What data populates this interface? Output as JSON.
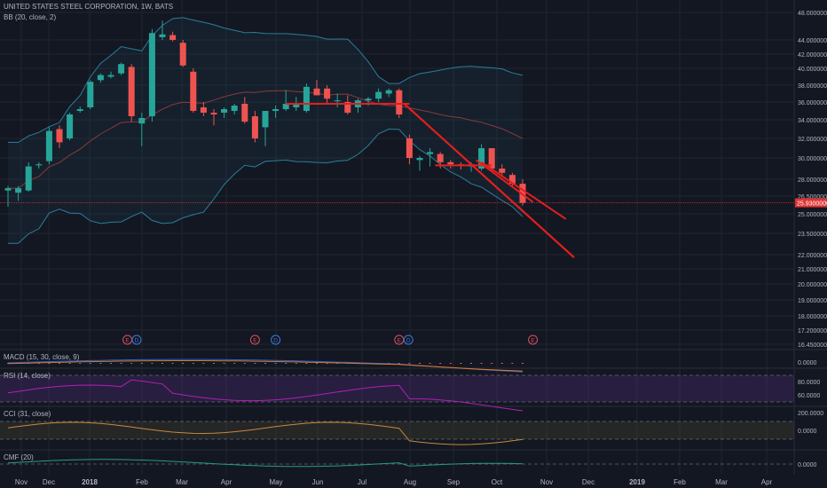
{
  "header": {
    "title": "UNITED STATES STEEL CORPORATION, 1W, BATS",
    "bb_label": "BB (20, close, 2)"
  },
  "colors": {
    "background": "#131722",
    "grid": "#1f2430",
    "up": "#26a69a",
    "down": "#ef5350",
    "trendline": "#e41e1e",
    "bb_basis": "#8a3a3a",
    "bb_band": "#2c7d99",
    "bb_fill": "rgba(38,120,140,0.10)",
    "rsi": "#b21fb7",
    "rsi_fill": "rgba(120,60,170,0.22)",
    "cci": "#c9893d",
    "macd": "#2f62e0",
    "signal": "#e0781f",
    "cmf": "#2b9a82",
    "price_marker": "#e03434"
  },
  "chart_data": {
    "type": "candlestick",
    "symbol": "UNITED STATES STEEL CORPORATION",
    "interval": "1W",
    "source": "BATS",
    "x_labels": [
      "Nov",
      "Dec",
      "2018",
      "Feb",
      "Mar",
      "Apr",
      "May",
      "Jun",
      "Jul",
      "Aug",
      "Sep",
      "Oct",
      "Nov",
      "Dec",
      "2019",
      "Feb",
      "Mar",
      "Apr"
    ],
    "price_axis": [
      "48.0000000",
      "44.0000000",
      "42.0000000",
      "40.0000000",
      "38.0000000",
      "36.0000000",
      "34.0000000",
      "32.0000000",
      "30.0000000",
      "28.0000000",
      "26.5000000",
      "25.0000000",
      "23.5000000",
      "22.0000000",
      "21.0000000",
      "20.0000000",
      "19.0000000",
      "18.0000000",
      "17.2000000",
      "16.4500000"
    ],
    "price_axis_values": [
      48,
      44,
      42,
      40,
      38,
      36,
      34,
      32,
      30,
      28,
      26.5,
      25,
      23.5,
      22,
      21,
      20,
      19,
      18,
      17.2,
      16.45
    ],
    "current_price_label": "25.9300000",
    "current_price": 25.93,
    "candles": [
      {
        "o": 27.0,
        "h": 27.4,
        "l": 25.6,
        "c": 27.2
      },
      {
        "o": 26.8,
        "h": 27.4,
        "l": 26.1,
        "c": 27.2
      },
      {
        "o": 27.0,
        "h": 29.6,
        "l": 26.9,
        "c": 29.2
      },
      {
        "o": 29.3,
        "h": 29.6,
        "l": 29.0,
        "c": 29.4
      },
      {
        "o": 29.7,
        "h": 33.2,
        "l": 29.4,
        "c": 32.8
      },
      {
        "o": 33.0,
        "h": 33.4,
        "l": 31.0,
        "c": 31.6
      },
      {
        "o": 32.0,
        "h": 34.8,
        "l": 31.8,
        "c": 34.6
      },
      {
        "o": 35.0,
        "h": 35.5,
        "l": 34.8,
        "c": 35.2
      },
      {
        "o": 35.4,
        "h": 38.6,
        "l": 35.2,
        "c": 38.4
      },
      {
        "o": 38.6,
        "h": 39.4,
        "l": 38.3,
        "c": 39.2
      },
      {
        "o": 39.0,
        "h": 39.6,
        "l": 38.8,
        "c": 39.2
      },
      {
        "o": 39.4,
        "h": 40.8,
        "l": 39.2,
        "c": 40.6
      },
      {
        "o": 40.2,
        "h": 40.6,
        "l": 33.8,
        "c": 34.4
      },
      {
        "o": 33.6,
        "h": 34.8,
        "l": 31.2,
        "c": 34.2
      },
      {
        "o": 34.4,
        "h": 45.6,
        "l": 33.8,
        "c": 45.0
      },
      {
        "o": 44.4,
        "h": 46.8,
        "l": 44.0,
        "c": 44.8
      },
      {
        "o": 44.7,
        "h": 45.2,
        "l": 43.8,
        "c": 44.0
      },
      {
        "o": 43.6,
        "h": 44.0,
        "l": 40.2,
        "c": 40.4
      },
      {
        "o": 39.6,
        "h": 40.0,
        "l": 34.8,
        "c": 35.0
      },
      {
        "o": 35.4,
        "h": 36.0,
        "l": 34.4,
        "c": 34.8
      },
      {
        "o": 34.8,
        "h": 35.2,
        "l": 33.4,
        "c": 34.6
      },
      {
        "o": 34.8,
        "h": 35.4,
        "l": 34.2,
        "c": 35.2
      },
      {
        "o": 35.0,
        "h": 35.8,
        "l": 34.6,
        "c": 35.6
      },
      {
        "o": 35.8,
        "h": 36.6,
        "l": 33.6,
        "c": 33.8
      },
      {
        "o": 34.4,
        "h": 35.0,
        "l": 31.6,
        "c": 32.0
      },
      {
        "o": 33.2,
        "h": 35.0,
        "l": 31.2,
        "c": 35.0
      },
      {
        "o": 35.0,
        "h": 35.6,
        "l": 34.2,
        "c": 35.2
      },
      {
        "o": 35.2,
        "h": 37.4,
        "l": 35.0,
        "c": 35.8
      },
      {
        "o": 35.4,
        "h": 36.6,
        "l": 35.0,
        "c": 35.8
      },
      {
        "o": 35.0,
        "h": 38.2,
        "l": 34.8,
        "c": 37.8
      },
      {
        "o": 37.6,
        "h": 38.6,
        "l": 36.8,
        "c": 36.8
      },
      {
        "o": 37.6,
        "h": 38.0,
        "l": 35.8,
        "c": 36.4
      },
      {
        "o": 36.2,
        "h": 37.0,
        "l": 35.4,
        "c": 36.2
      },
      {
        "o": 36.0,
        "h": 36.8,
        "l": 34.6,
        "c": 34.8
      },
      {
        "o": 35.4,
        "h": 36.4,
        "l": 34.8,
        "c": 36.2
      },
      {
        "o": 36.2,
        "h": 36.6,
        "l": 35.6,
        "c": 36.4
      },
      {
        "o": 36.4,
        "h": 37.6,
        "l": 36.0,
        "c": 37.2
      },
      {
        "o": 37.0,
        "h": 37.6,
        "l": 36.6,
        "c": 37.4
      },
      {
        "o": 37.4,
        "h": 37.6,
        "l": 34.2,
        "c": 34.6
      },
      {
        "o": 32.0,
        "h": 32.4,
        "l": 29.4,
        "c": 30.0
      },
      {
        "o": 29.8,
        "h": 30.2,
        "l": 28.8,
        "c": 30.0
      },
      {
        "o": 30.4,
        "h": 31.0,
        "l": 29.2,
        "c": 30.6
      },
      {
        "o": 30.4,
        "h": 30.6,
        "l": 29.0,
        "c": 29.6
      },
      {
        "o": 29.6,
        "h": 29.8,
        "l": 29.0,
        "c": 29.4
      },
      {
        "o": 29.4,
        "h": 29.6,
        "l": 28.9,
        "c": 29.3
      },
      {
        "o": 29.2,
        "h": 29.6,
        "l": 28.7,
        "c": 29.4
      },
      {
        "o": 29.0,
        "h": 31.4,
        "l": 28.8,
        "c": 31.0
      },
      {
        "o": 31.0,
        "h": 31.0,
        "l": 28.8,
        "c": 29.0
      },
      {
        "o": 29.0,
        "h": 29.4,
        "l": 28.2,
        "c": 28.6
      },
      {
        "o": 28.4,
        "h": 28.6,
        "l": 27.4,
        "c": 27.6
      },
      {
        "o": 27.6,
        "h": 28.0,
        "l": 25.7,
        "c": 25.93
      }
    ],
    "bollinger": {
      "period": 20,
      "source": "close",
      "mult": 2
    },
    "trendlines_price": [
      {
        "from_bar": 27,
        "from_price": 35.8,
        "to_bar": 39,
        "to_price": 35.8
      },
      {
        "from_bar": 38.5,
        "from_price": 35.8,
        "to_bar": 55,
        "to_price": 21.8
      },
      {
        "from_bar": 41.5,
        "from_price": 29.3,
        "to_bar": 47,
        "to_price": 29.3
      },
      {
        "from_bar": 45.5,
        "from_price": 29.8,
        "to_bar": 51,
        "to_price": 26.0
      }
    ],
    "event_markers": [
      {
        "bar": 11.6,
        "type": "E"
      },
      {
        "bar": 12.5,
        "type": "D"
      },
      {
        "bar": 24.0,
        "type": "E"
      },
      {
        "bar": 26.0,
        "type": "D"
      },
      {
        "bar": 38.0,
        "type": "E"
      },
      {
        "bar": 38.9,
        "type": "D"
      },
      {
        "bar": 51.0,
        "type": "E"
      }
    ],
    "indicators": [
      {
        "name": "MACD (15, 30, close, 9)",
        "axis_label": "0.0000"
      },
      {
        "name": "RSI (14, close)",
        "axis_labels": [
          "80.0000",
          "60.0000"
        ]
      },
      {
        "name": "CCI (31, close)",
        "axis_labels": [
          "200.0000",
          "0.0000"
        ]
      },
      {
        "name": "CMF (20)",
        "axis_label": "0.0000"
      }
    ]
  }
}
